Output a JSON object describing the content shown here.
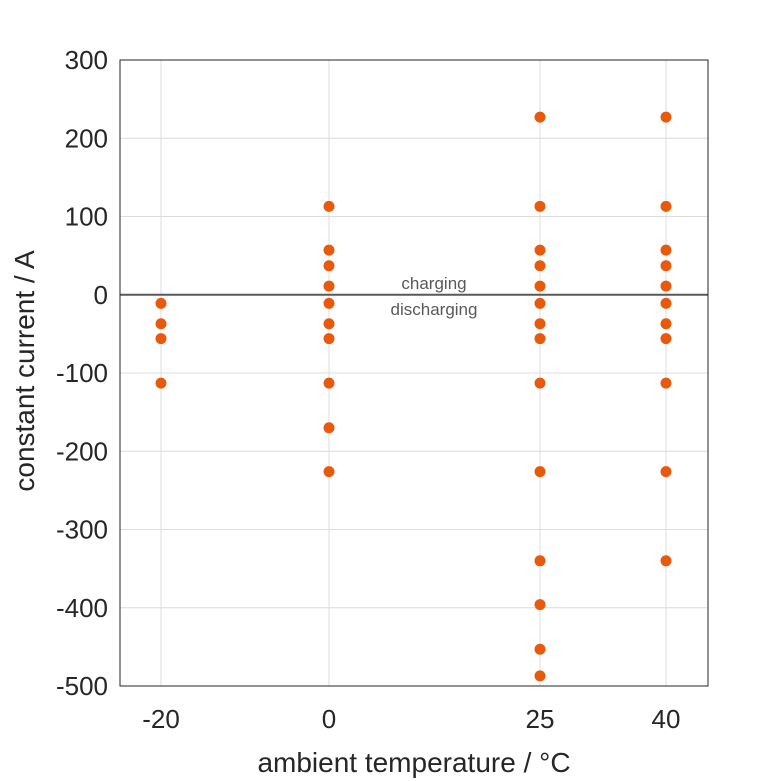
{
  "chart_data": {
    "type": "scatter",
    "xlabel": "ambient temperature / °C",
    "ylabel": "constant current / A",
    "x_ticks": [
      -20,
      0,
      25,
      40
    ],
    "x_tick_labels": [
      "-20",
      "0",
      "25",
      "40"
    ],
    "y_ticks": [
      300,
      200,
      100,
      0,
      -100,
      -200,
      -300,
      -400,
      -500
    ],
    "y_tick_labels": [
      "300",
      "200",
      "100",
      "0",
      "-100",
      "-200",
      "-300",
      "-400",
      "-500"
    ],
    "xlim": [
      -25,
      46
    ],
    "ylim": [
      -500,
      300
    ],
    "x_scale": "categorical-spaced",
    "grid": true,
    "marker_color": "#E8590C",
    "zero_line_color": "#595959",
    "annotations": {
      "charging": "charging",
      "discharging": "discharging"
    },
    "series": [
      {
        "points": [
          {
            "x": -20,
            "y": -11
          },
          {
            "x": -20,
            "y": -37
          },
          {
            "x": -20,
            "y": -56
          },
          {
            "x": -20,
            "y": -113
          },
          {
            "x": 0,
            "y": 113
          },
          {
            "x": 0,
            "y": 57
          },
          {
            "x": 0,
            "y": 37
          },
          {
            "x": 0,
            "y": 11
          },
          {
            "x": 0,
            "y": -11
          },
          {
            "x": 0,
            "y": -37
          },
          {
            "x": 0,
            "y": -56
          },
          {
            "x": 0,
            "y": -113
          },
          {
            "x": 0,
            "y": -170
          },
          {
            "x": 0,
            "y": -226
          },
          {
            "x": 25,
            "y": 227
          },
          {
            "x": 25,
            "y": 113
          },
          {
            "x": 25,
            "y": 57
          },
          {
            "x": 25,
            "y": 37
          },
          {
            "x": 25,
            "y": 11
          },
          {
            "x": 25,
            "y": -11
          },
          {
            "x": 25,
            "y": -37
          },
          {
            "x": 25,
            "y": -56
          },
          {
            "x": 25,
            "y": -113
          },
          {
            "x": 25,
            "y": -226
          },
          {
            "x": 25,
            "y": -340
          },
          {
            "x": 25,
            "y": -396
          },
          {
            "x": 25,
            "y": -453
          },
          {
            "x": 25,
            "y": -487
          },
          {
            "x": 40,
            "y": 227
          },
          {
            "x": 40,
            "y": 113
          },
          {
            "x": 40,
            "y": 57
          },
          {
            "x": 40,
            "y": 37
          },
          {
            "x": 40,
            "y": 11
          },
          {
            "x": 40,
            "y": -11
          },
          {
            "x": 40,
            "y": -37
          },
          {
            "x": 40,
            "y": -56
          },
          {
            "x": 40,
            "y": -113
          },
          {
            "x": 40,
            "y": -226
          },
          {
            "x": 40,
            "y": -340
          }
        ]
      }
    ]
  }
}
